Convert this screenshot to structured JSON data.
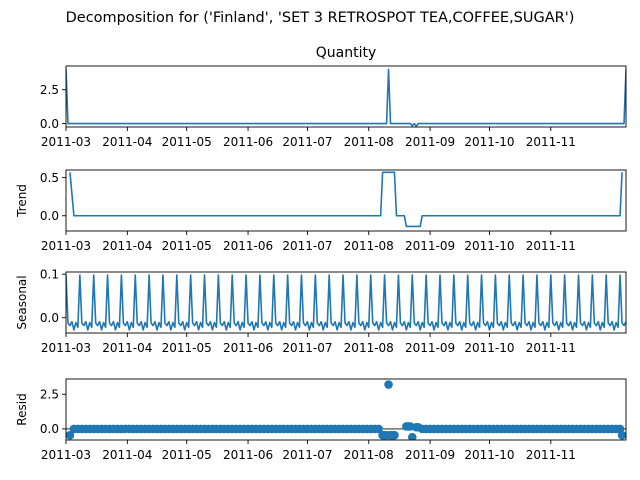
{
  "figure_title": "Decomposition for ('Finland', 'SET 3 RETROSPOT TEA,COFFEE,SUGAR')",
  "colors": {
    "line": "#1f77b4",
    "axes": "#000000",
    "background": "#ffffff"
  },
  "chart_data": [
    {
      "type": "line",
      "title": "Quantity",
      "xlabel": "",
      "ylabel": "",
      "xlim": [
        "2011-03-01",
        "2011-12-09"
      ],
      "ylim": [
        -0.25,
        4.25
      ],
      "yticks": [
        0.0,
        2.5
      ],
      "ytick_labels": [
        "0.0",
        "2.5"
      ],
      "xticks": [
        "2011-03-01",
        "2011-04-01",
        "2011-05-01",
        "2011-06-01",
        "2011-07-01",
        "2011-08-01",
        "2011-09-01",
        "2011-10-01",
        "2011-11-01"
      ],
      "xtick_labels": [
        "2011-03",
        "2011-04",
        "2011-05",
        "2011-06",
        "2011-07",
        "2011-08",
        "2011-09",
        "2011-10",
        "2011-11"
      ],
      "grid": false,
      "points": [
        [
          "2011-03-01",
          4.0
        ],
        [
          "2011-03-02",
          0.0
        ],
        [
          "2011-08-10",
          0.0
        ],
        [
          "2011-08-11",
          4.0
        ],
        [
          "2011-08-12",
          0.0
        ],
        [
          "2011-08-22",
          0.0
        ],
        [
          "2011-08-23",
          -0.15
        ],
        [
          "2011-08-24",
          0.0
        ],
        [
          "2011-08-25",
          -0.2
        ],
        [
          "2011-08-26",
          0.0
        ],
        [
          "2011-12-08",
          0.0
        ],
        [
          "2011-12-09",
          4.0
        ]
      ]
    },
    {
      "type": "line",
      "title": "",
      "xlabel": "",
      "ylabel": "Trend",
      "xlim": [
        "2011-03-01",
        "2011-12-09"
      ],
      "ylim": [
        -0.2,
        0.6
      ],
      "yticks": [
        0.0,
        0.5
      ],
      "ytick_labels": [
        "0.0",
        "0.5"
      ],
      "xticks": [
        "2011-03-01",
        "2011-04-01",
        "2011-05-01",
        "2011-06-01",
        "2011-07-01",
        "2011-08-01",
        "2011-09-01",
        "2011-10-01",
        "2011-11-01"
      ],
      "xtick_labels": [
        "2011-03",
        "2011-04",
        "2011-05",
        "2011-06",
        "2011-07",
        "2011-08",
        "2011-09",
        "2011-10",
        "2011-11"
      ],
      "grid": false,
      "points": [
        [
          "2011-03-03",
          0.57
        ],
        [
          "2011-03-05",
          0.0
        ],
        [
          "2011-08-07",
          0.0
        ],
        [
          "2011-08-08",
          0.57
        ],
        [
          "2011-08-14",
          0.57
        ],
        [
          "2011-08-15",
          0.0
        ],
        [
          "2011-08-19",
          0.0
        ],
        [
          "2011-08-20",
          -0.14
        ],
        [
          "2011-08-27",
          -0.14
        ],
        [
          "2011-08-28",
          0.0
        ],
        [
          "2011-12-06",
          0.0
        ],
        [
          "2011-12-07",
          0.57
        ]
      ]
    },
    {
      "type": "line",
      "title": "",
      "xlabel": "",
      "ylabel": "Seasonal",
      "xlim": [
        "2011-03-01",
        "2011-12-09"
      ],
      "ylim": [
        -0.035,
        0.105
      ],
      "yticks": [
        0.0,
        0.1
      ],
      "ytick_labels": [
        "0.0",
        "0.1"
      ],
      "xticks": [
        "2011-03-01",
        "2011-04-01",
        "2011-05-01",
        "2011-06-01",
        "2011-07-01",
        "2011-08-01",
        "2011-09-01",
        "2011-10-01",
        "2011-11-01"
      ],
      "xtick_labels": [
        "2011-03",
        "2011-04",
        "2011-05",
        "2011-06",
        "2011-07",
        "2011-08",
        "2011-09",
        "2011-10",
        "2011-11"
      ],
      "grid": false,
      "period_days": 7,
      "pattern": [
        0.098,
        -0.012,
        -0.018,
        -0.009,
        -0.028,
        -0.011,
        -0.022
      ]
    },
    {
      "type": "scatter",
      "title": "",
      "xlabel": "",
      "ylabel": "Resid",
      "xlim": [
        "2011-03-01",
        "2011-12-09"
      ],
      "ylim": [
        -0.8,
        3.6
      ],
      "yticks": [
        0.0,
        2.5
      ],
      "ytick_labels": [
        "0.0",
        "2.5"
      ],
      "xticks": [
        "2011-03-01",
        "2011-04-01",
        "2011-05-01",
        "2011-06-01",
        "2011-07-01",
        "2011-08-01",
        "2011-09-01",
        "2011-10-01",
        "2011-11-01"
      ],
      "xtick_labels": [
        "2011-03",
        "2011-04",
        "2011-05",
        "2011-06",
        "2011-07",
        "2011-08",
        "2011-09",
        "2011-10",
        "2011-11"
      ],
      "grid": false,
      "baseline_value": 0.0,
      "baseline_range": [
        "2011-03-05",
        "2011-12-06"
      ],
      "baseline_step_days": 2,
      "outliers": [
        [
          "2011-03-03",
          -0.45
        ],
        [
          "2011-08-08",
          -0.45
        ],
        [
          "2011-08-09",
          -0.45
        ],
        [
          "2011-08-10",
          -0.45
        ],
        [
          "2011-08-11",
          3.2
        ],
        [
          "2011-08-12",
          -0.45
        ],
        [
          "2011-08-13",
          -0.45
        ],
        [
          "2011-08-14",
          -0.45
        ],
        [
          "2011-08-20",
          0.18
        ],
        [
          "2011-08-21",
          0.18
        ],
        [
          "2011-08-22",
          0.18
        ],
        [
          "2011-08-23",
          -0.6
        ],
        [
          "2011-08-25",
          0.12
        ],
        [
          "2011-08-26",
          0.12
        ],
        [
          "2011-12-07",
          -0.45
        ]
      ]
    }
  ]
}
